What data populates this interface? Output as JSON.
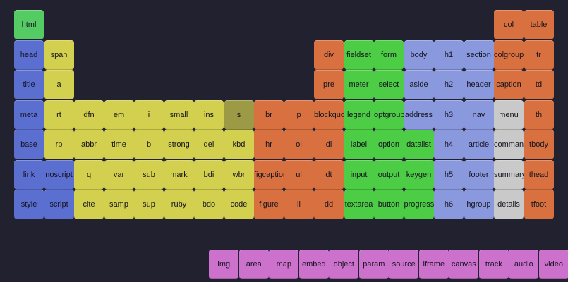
{
  "colors": {
    "background": "#212130",
    "metadata": "#5b6fd0",
    "text": "#d3cf4f",
    "deprecated_text": "#9c9a44",
    "edits_blocks": "#d9703f",
    "forms": "#4dcc45",
    "sections": "#8a98de",
    "interactive": "#c9c9c9",
    "tables": "#d9703f",
    "root": "#55cc63",
    "embedded": "#cc71cc"
  },
  "tiles": [
    {
      "label": "html",
      "category": "root",
      "col": 0,
      "row": 0
    },
    {
      "label": "head",
      "category": "metadata",
      "col": 0,
      "row": 1
    },
    {
      "label": "title",
      "category": "metadata",
      "col": 0,
      "row": 2
    },
    {
      "label": "meta",
      "category": "metadata",
      "col": 0,
      "row": 3
    },
    {
      "label": "base",
      "category": "metadata",
      "col": 0,
      "row": 4
    },
    {
      "label": "link",
      "category": "metadata",
      "col": 0,
      "row": 5
    },
    {
      "label": "style",
      "category": "metadata",
      "col": 0,
      "row": 6
    },
    {
      "label": "noscript",
      "category": "metadata",
      "col": 1,
      "row": 5
    },
    {
      "label": "script",
      "category": "metadata",
      "col": 1,
      "row": 6
    },
    {
      "label": "span",
      "category": "text",
      "col": 1,
      "row": 1
    },
    {
      "label": "a",
      "category": "text",
      "col": 1,
      "row": 2
    },
    {
      "label": "rt",
      "category": "text",
      "col": 1,
      "row": 3
    },
    {
      "label": "rp",
      "category": "text",
      "col": 1,
      "row": 4
    },
    {
      "label": "dfn",
      "category": "text",
      "col": 2,
      "row": 3
    },
    {
      "label": "abbr",
      "category": "text",
      "col": 2,
      "row": 4
    },
    {
      "label": "q",
      "category": "text",
      "col": 2,
      "row": 5
    },
    {
      "label": "cite",
      "category": "text",
      "col": 2,
      "row": 6
    },
    {
      "label": "em",
      "category": "text",
      "col": 3,
      "row": 3
    },
    {
      "label": "time",
      "category": "text",
      "col": 3,
      "row": 4
    },
    {
      "label": "var",
      "category": "text",
      "col": 3,
      "row": 5
    },
    {
      "label": "samp",
      "category": "text",
      "col": 3,
      "row": 6
    },
    {
      "label": "i",
      "category": "text",
      "col": 4,
      "row": 3
    },
    {
      "label": "b",
      "category": "text",
      "col": 4,
      "row": 4
    },
    {
      "label": "sub",
      "category": "text",
      "col": 4,
      "row": 5
    },
    {
      "label": "sup",
      "category": "text",
      "col": 4,
      "row": 6
    },
    {
      "label": "small",
      "category": "text",
      "col": 5,
      "row": 3
    },
    {
      "label": "strong",
      "category": "text",
      "col": 5,
      "row": 4
    },
    {
      "label": "mark",
      "category": "text",
      "col": 5,
      "row": 5
    },
    {
      "label": "ruby",
      "category": "text",
      "col": 5,
      "row": 6
    },
    {
      "label": "ins",
      "category": "text",
      "col": 6,
      "row": 3
    },
    {
      "label": "del",
      "category": "text",
      "col": 6,
      "row": 4
    },
    {
      "label": "bdi",
      "category": "text",
      "col": 6,
      "row": 5
    },
    {
      "label": "bdo",
      "category": "text",
      "col": 6,
      "row": 6
    },
    {
      "label": "s",
      "category": "deprecated_text",
      "col": 7,
      "row": 3
    },
    {
      "label": "kbd",
      "category": "text",
      "col": 7,
      "row": 4
    },
    {
      "label": "wbr",
      "category": "text",
      "col": 7,
      "row": 5
    },
    {
      "label": "code",
      "category": "text",
      "col": 7,
      "row": 6
    },
    {
      "label": "br",
      "category": "edits_blocks",
      "col": 8,
      "row": 3
    },
    {
      "label": "hr",
      "category": "edits_blocks",
      "col": 8,
      "row": 4
    },
    {
      "label": "figcaption",
      "category": "edits_blocks",
      "col": 8,
      "row": 5
    },
    {
      "label": "figure",
      "category": "edits_blocks",
      "col": 8,
      "row": 6
    },
    {
      "label": "p",
      "category": "edits_blocks",
      "col": 9,
      "row": 3
    },
    {
      "label": "ol",
      "category": "edits_blocks",
      "col": 9,
      "row": 4
    },
    {
      "label": "ul",
      "category": "edits_blocks",
      "col": 9,
      "row": 5
    },
    {
      "label": "li",
      "category": "edits_blocks",
      "col": 9,
      "row": 6
    },
    {
      "label": "div",
      "category": "edits_blocks",
      "col": 10,
      "row": 1
    },
    {
      "label": "pre",
      "category": "edits_blocks",
      "col": 10,
      "row": 2
    },
    {
      "label": "blockquote",
      "category": "edits_blocks",
      "col": 10,
      "row": 3
    },
    {
      "label": "dl",
      "category": "edits_blocks",
      "col": 10,
      "row": 4
    },
    {
      "label": "dt",
      "category": "edits_blocks",
      "col": 10,
      "row": 5
    },
    {
      "label": "dd",
      "category": "edits_blocks",
      "col": 10,
      "row": 6
    },
    {
      "label": "fieldset",
      "category": "forms",
      "col": 11,
      "row": 1
    },
    {
      "label": "meter",
      "category": "forms",
      "col": 11,
      "row": 2
    },
    {
      "label": "legend",
      "category": "forms",
      "col": 11,
      "row": 3
    },
    {
      "label": "label",
      "category": "forms",
      "col": 11,
      "row": 4
    },
    {
      "label": "input",
      "category": "forms",
      "col": 11,
      "row": 5
    },
    {
      "label": "textarea",
      "category": "forms",
      "col": 11,
      "row": 6
    },
    {
      "label": "form",
      "category": "forms",
      "col": 12,
      "row": 1
    },
    {
      "label": "select",
      "category": "forms",
      "col": 12,
      "row": 2
    },
    {
      "label": "optgroup",
      "category": "forms",
      "col": 12,
      "row": 3
    },
    {
      "label": "option",
      "category": "forms",
      "col": 12,
      "row": 4
    },
    {
      "label": "output",
      "category": "forms",
      "col": 12,
      "row": 5
    },
    {
      "label": "button",
      "category": "forms",
      "col": 12,
      "row": 6
    },
    {
      "label": "body",
      "category": "sections",
      "col": 13,
      "row": 1
    },
    {
      "label": "aside",
      "category": "sections",
      "col": 13,
      "row": 2
    },
    {
      "label": "address",
      "category": "sections",
      "col": 13,
      "row": 3
    },
    {
      "label": "datalist",
      "category": "forms",
      "col": 13,
      "row": 4
    },
    {
      "label": "keygen",
      "category": "forms",
      "col": 13,
      "row": 5
    },
    {
      "label": "progress",
      "category": "forms",
      "col": 13,
      "row": 6
    },
    {
      "label": "h1",
      "category": "sections",
      "col": 14,
      "row": 1
    },
    {
      "label": "h2",
      "category": "sections",
      "col": 14,
      "row": 2
    },
    {
      "label": "h3",
      "category": "sections",
      "col": 14,
      "row": 3
    },
    {
      "label": "h4",
      "category": "sections",
      "col": 14,
      "row": 4
    },
    {
      "label": "h5",
      "category": "sections",
      "col": 14,
      "row": 5
    },
    {
      "label": "h6",
      "category": "sections",
      "col": 14,
      "row": 6
    },
    {
      "label": "section",
      "category": "sections",
      "col": 15,
      "row": 1
    },
    {
      "label": "header",
      "category": "sections",
      "col": 15,
      "row": 2
    },
    {
      "label": "nav",
      "category": "sections",
      "col": 15,
      "row": 3
    },
    {
      "label": "article",
      "category": "sections",
      "col": 15,
      "row": 4
    },
    {
      "label": "footer",
      "category": "sections",
      "col": 15,
      "row": 5
    },
    {
      "label": "hgroup",
      "category": "sections",
      "col": 15,
      "row": 6
    },
    {
      "label": "col",
      "category": "tables",
      "col": 16,
      "row": 0
    },
    {
      "label": "colgroup",
      "category": "tables",
      "col": 16,
      "row": 1
    },
    {
      "label": "caption",
      "category": "tables",
      "col": 16,
      "row": 2
    },
    {
      "label": "menu",
      "category": "interactive",
      "col": 16,
      "row": 3
    },
    {
      "label": "command",
      "category": "interactive",
      "col": 16,
      "row": 4
    },
    {
      "label": "summary",
      "category": "interactive",
      "col": 16,
      "row": 5
    },
    {
      "label": "details",
      "category": "interactive",
      "col": 16,
      "row": 6
    },
    {
      "label": "table",
      "category": "tables",
      "col": 17,
      "row": 0
    },
    {
      "label": "tr",
      "category": "tables",
      "col": 17,
      "row": 1
    },
    {
      "label": "td",
      "category": "tables",
      "col": 17,
      "row": 2
    },
    {
      "label": "th",
      "category": "tables",
      "col": 17,
      "row": 3
    },
    {
      "label": "tbody",
      "category": "tables",
      "col": 17,
      "row": 4
    },
    {
      "label": "thead",
      "category": "tables",
      "col": 17,
      "row": 5
    },
    {
      "label": "tfoot",
      "category": "tables",
      "col": 17,
      "row": 6
    },
    {
      "label": "img",
      "category": "embedded",
      "col": 6.5,
      "row": 8
    },
    {
      "label": "area",
      "category": "embedded",
      "col": 7.5,
      "row": 8
    },
    {
      "label": "map",
      "category": "embedded",
      "col": 8.5,
      "row": 8
    },
    {
      "label": "embed",
      "category": "embedded",
      "col": 9.5,
      "row": 8
    },
    {
      "label": "object",
      "category": "embedded",
      "col": 10.5,
      "row": 8
    },
    {
      "label": "param",
      "category": "embedded",
      "col": 11.5,
      "row": 8
    },
    {
      "label": "source",
      "category": "embedded",
      "col": 12.5,
      "row": 8
    },
    {
      "label": "iframe",
      "category": "embedded",
      "col": 13.5,
      "row": 8
    },
    {
      "label": "canvas",
      "category": "embedded",
      "col": 14.5,
      "row": 8
    },
    {
      "label": "track",
      "category": "embedded",
      "col": 15.5,
      "row": 8
    },
    {
      "label": "audio",
      "category": "embedded",
      "col": 16.5,
      "row": 8
    },
    {
      "label": "video",
      "category": "embedded",
      "col": 17.5,
      "row": 8
    }
  ]
}
